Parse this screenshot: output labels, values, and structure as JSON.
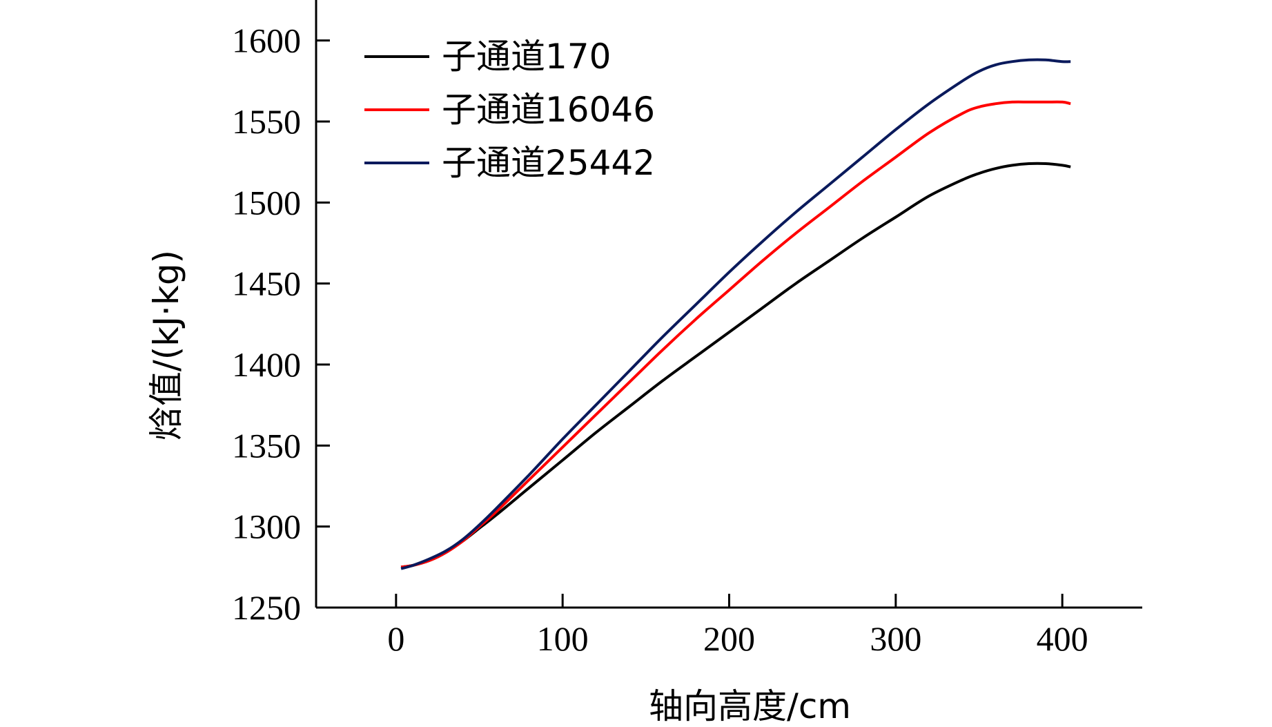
{
  "chart_data": {
    "type": "line",
    "title": "",
    "xlabel": "轴向高度/cm",
    "ylabel": "焓值/(kJ·kg)",
    "xlim": [
      -48,
      448
    ],
    "ylim": [
      1250,
      1625
    ],
    "xticks": [
      0,
      100,
      200,
      300,
      400
    ],
    "yticks": [
      1250,
      1300,
      1350,
      1400,
      1450,
      1500,
      1550,
      1600
    ],
    "grid": false,
    "legend_position": "top-left",
    "series": [
      {
        "name": "子通道170",
        "color": "#000000",
        "x": [
          3,
          10,
          20,
          30,
          40,
          50,
          60,
          80,
          100,
          120,
          140,
          160,
          180,
          200,
          220,
          240,
          260,
          280,
          300,
          320,
          340,
          350,
          360,
          370,
          380,
          390,
          400,
          405
        ],
        "y": [
          1275,
          1276,
          1279,
          1284,
          1291,
          1299,
          1307,
          1324,
          1341,
          1358,
          1374,
          1390,
          1405,
          1420,
          1435,
          1450,
          1464,
          1478,
          1491,
          1504,
          1514,
          1518,
          1521,
          1523,
          1524,
          1524,
          1523,
          1522
        ]
      },
      {
        "name": "子通道16046",
        "color": "#ff0000",
        "x": [
          3,
          10,
          20,
          30,
          40,
          50,
          60,
          80,
          100,
          120,
          140,
          160,
          180,
          200,
          220,
          240,
          260,
          280,
          300,
          320,
          340,
          350,
          360,
          370,
          380,
          390,
          400,
          405
        ],
        "y": [
          1275,
          1276,
          1279,
          1284,
          1291,
          1300,
          1309,
          1329,
          1349,
          1369,
          1389,
          1409,
          1428,
          1446,
          1464,
          1481,
          1497,
          1513,
          1528,
          1543,
          1555,
          1559,
          1561,
          1562,
          1562,
          1562,
          1562,
          1561
        ]
      },
      {
        "name": "子通道25442",
        "color": "#0a1a5c",
        "x": [
          3,
          10,
          20,
          30,
          40,
          50,
          60,
          80,
          100,
          120,
          140,
          160,
          180,
          200,
          220,
          240,
          260,
          280,
          300,
          320,
          340,
          350,
          360,
          370,
          380,
          390,
          400,
          405
        ],
        "y": [
          1274,
          1276,
          1280,
          1285,
          1292,
          1301,
          1311,
          1332,
          1354,
          1375,
          1396,
          1417,
          1437,
          1457,
          1476,
          1494,
          1511,
          1528,
          1545,
          1561,
          1575,
          1581,
          1585,
          1587,
          1588,
          1588,
          1587,
          1587
        ]
      }
    ]
  }
}
